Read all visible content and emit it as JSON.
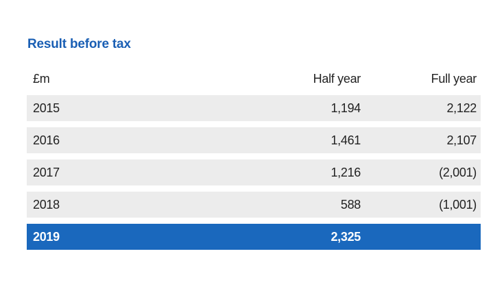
{
  "title": "Result before tax",
  "columns": {
    "label": "£m",
    "half_year": "Half year",
    "full_year": "Full year"
  },
  "rows": [
    {
      "year": "2015",
      "half_year": "1,194",
      "full_year": "2,122"
    },
    {
      "year": "2016",
      "half_year": "1,461",
      "full_year": "2,107"
    },
    {
      "year": "2017",
      "half_year": "1,216",
      "full_year": "(2,001)"
    },
    {
      "year": "2018",
      "half_year": "588",
      "full_year": "(1,001)"
    }
  ],
  "highlight_row": {
    "year": "2019",
    "half_year": "2,325",
    "full_year": ""
  },
  "colors": {
    "accent": "#1a5fb4",
    "highlight_bg": "#1a68bd",
    "row_bg": "#ececec"
  }
}
